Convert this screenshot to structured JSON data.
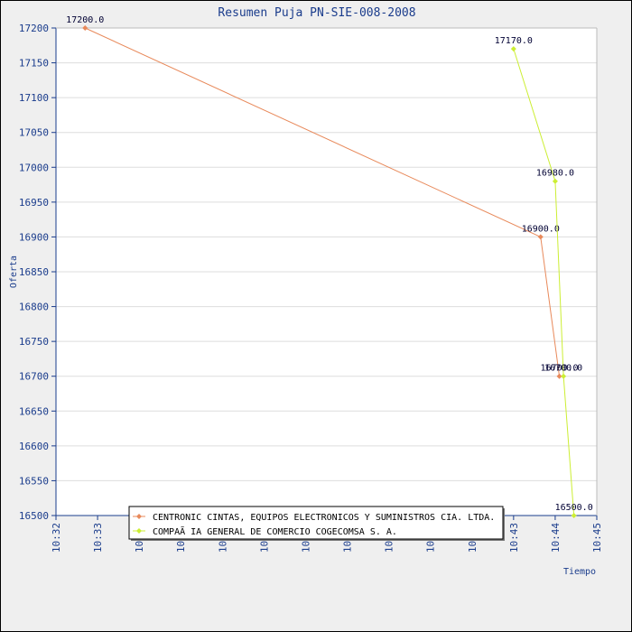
{
  "chart_data": {
    "type": "line",
    "title": "Resumen Puja PN-SIE-008-2008",
    "xlabel": "Tiempo",
    "ylabel": "Oferta",
    "ylim": [
      16500,
      17200
    ],
    "yticks": [
      16500,
      16550,
      16600,
      16650,
      16700,
      16750,
      16800,
      16850,
      16900,
      16950,
      17000,
      17050,
      17100,
      17150,
      17200
    ],
    "xlim_minutes": [
      632,
      645
    ],
    "xticks": [
      {
        "label": "10:32",
        "value": 632
      },
      {
        "label": "10:33",
        "value": 633
      },
      {
        "label": "10:34",
        "value": 634
      },
      {
        "label": "10:35",
        "value": 635
      },
      {
        "label": "10:36",
        "value": 636
      },
      {
        "label": "10:37",
        "value": 637
      },
      {
        "label": "10:38",
        "value": 638
      },
      {
        "label": "10:39",
        "value": 639
      },
      {
        "label": "10:40",
        "value": 640
      },
      {
        "label": "10:41",
        "value": 641
      },
      {
        "label": "10:42",
        "value": 642
      },
      {
        "label": "10:43",
        "value": 643
      },
      {
        "label": "10:44",
        "value": 644
      },
      {
        "label": "10:45",
        "value": 645
      }
    ],
    "grid": true,
    "legend_position": "bottom",
    "series": [
      {
        "name": "CENTRONIC CINTAS, EQUIPOS ELECTRONICOS Y SUMINISTROS CIA. LTDA.",
        "color": "#e8895a",
        "points": [
          {
            "x": 632.7,
            "y": 17200,
            "label": "17200.0"
          },
          {
            "x": 643.65,
            "y": 16900,
            "label": "16900.0"
          },
          {
            "x": 644.1,
            "y": 16700,
            "label": "16700.0"
          }
        ]
      },
      {
        "name": "COMPAÃ IA GENERAL DE COMERCIO COGECOMSA S. A.",
        "color": "#ccee33",
        "points": [
          {
            "x": 643.0,
            "y": 17170,
            "label": "17170.0"
          },
          {
            "x": 644.0,
            "y": 16980,
            "label": "16980.0"
          },
          {
            "x": 644.2,
            "y": 16700,
            "label": "16700.0"
          },
          {
            "x": 644.45,
            "y": 16500,
            "label": "16500.0"
          }
        ]
      }
    ]
  }
}
